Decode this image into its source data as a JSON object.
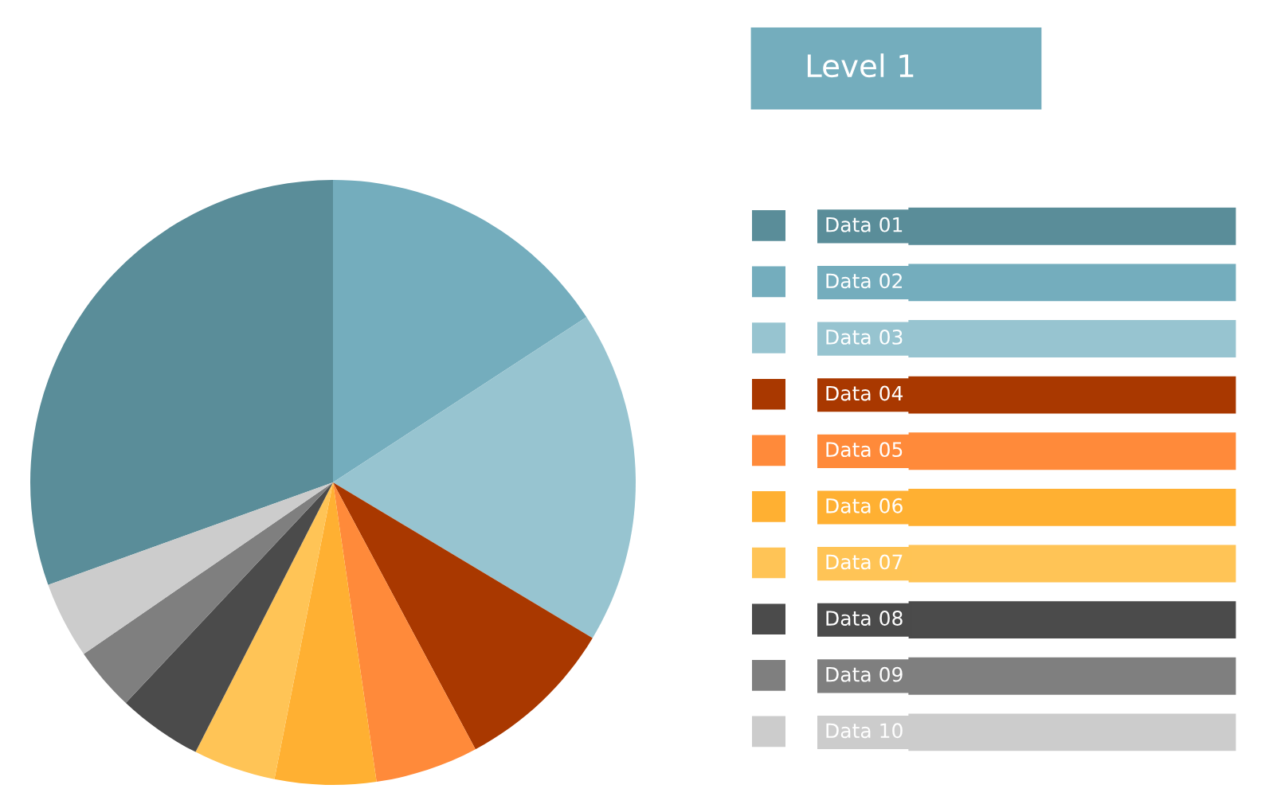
{
  "chart_data": {
    "type": "pie",
    "legend_title": "Level 1",
    "legend": "right",
    "categories": [
      "Data 01",
      "Data 02",
      "Data 03",
      "Data 04",
      "Data 05",
      "Data 06",
      "Data 07",
      "Data 08",
      "Data 09",
      "Data 10"
    ],
    "values": [
      30.5,
      15.8,
      17.8,
      8.6,
      5.5,
      5.4,
      4.4,
      4.5,
      3.4,
      4.1
    ],
    "colors": [
      "#5a8d99",
      "#74adbd",
      "#97c4d0",
      "#a93800",
      "#ff8a3a",
      "#ffb032",
      "#ffc456",
      "#4b4b4b",
      "#7f7f7f",
      "#cccccc"
    ]
  }
}
